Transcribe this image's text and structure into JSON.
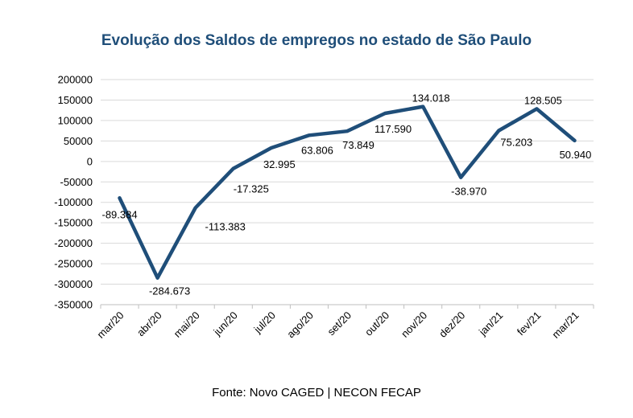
{
  "chart_data": {
    "type": "line",
    "title": "Evolução dos Saldos de empregos no estado de São Paulo",
    "source": "Fonte: Novo CAGED | NECON FECAP",
    "categories": [
      "mar/20",
      "abr/20",
      "mai/20",
      "jun/20",
      "jul/20",
      "ago/20",
      "set/20",
      "out/20",
      "nov/20",
      "dez/20",
      "jan/21",
      "fev/21",
      "mar/21"
    ],
    "series": [
      {
        "values": [
          -89384,
          -284673,
          -113383,
          -17325,
          32995,
          63806,
          73849,
          117590,
          134018,
          -38970,
          75203,
          128505,
          50940
        ],
        "labels": [
          "-89.384",
          "-284.673",
          "-113.383",
          "-17.325",
          "32.995",
          "63.806",
          "73.849",
          "117.590",
          "134.018",
          "-38.970",
          "75.203",
          "128.505",
          "50.940"
        ]
      }
    ],
    "yticks": [
      200000,
      150000,
      100000,
      50000,
      0,
      -50000,
      -100000,
      -150000,
      -200000,
      -250000,
      -300000,
      -350000
    ],
    "ylim": [
      -350000,
      200000
    ],
    "grid": true,
    "line_color": "#1F4E79"
  }
}
